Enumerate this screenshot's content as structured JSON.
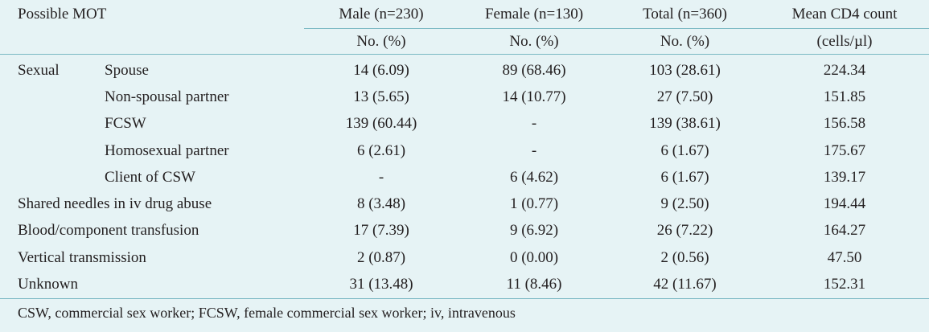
{
  "headers": {
    "mot": "Possible MOT",
    "male": "Male (n=230)",
    "female": "Female (n=130)",
    "total": "Total (n=360)",
    "cd4": "Mean CD4 count",
    "male_sub": "No. (%)",
    "female_sub": "No. (%)",
    "total_sub": "No. (%)",
    "cd4_sub": "(cells/µl)"
  },
  "rows": [
    {
      "category": "Sexual",
      "label": "Spouse",
      "male": "14 (6.09)",
      "female": "89 (68.46)",
      "total": "103 (28.61)",
      "cd4": "224.34"
    },
    {
      "category": "",
      "label": "Non-spousal partner",
      "male": "13 (5.65)",
      "female": "14 (10.77)",
      "total": "27 (7.50)",
      "cd4": "151.85"
    },
    {
      "category": "",
      "label": "FCSW",
      "male": "139 (60.44)",
      "female": "-",
      "total": "139 (38.61)",
      "cd4": "156.58"
    },
    {
      "category": "",
      "label": "Homosexual partner",
      "male": "6 (2.61)",
      "female": "-",
      "total": "6 (1.67)",
      "cd4": "175.67"
    },
    {
      "category": "",
      "label": "Client of CSW",
      "male": "-",
      "female": "6 (4.62)",
      "total": "6 (1.67)",
      "cd4": "139.17"
    },
    {
      "category": "",
      "label": "Shared needles in iv drug abuse",
      "male": "8 (3.48)",
      "female": "1 (0.77)",
      "total": "9 (2.50)",
      "cd4": "194.44"
    },
    {
      "category": "",
      "label": "Blood/component transfusion",
      "male": "17 (7.39)",
      "female": "9 (6.92)",
      "total": "26 (7.22)",
      "cd4": "164.27"
    },
    {
      "category": "",
      "label": "Vertical transmission",
      "male": "2 (0.87)",
      "female": "0 (0.00)",
      "total": "2 (0.56)",
      "cd4": "47.50"
    },
    {
      "category": "",
      "label": "Unknown",
      "male": "31 (13.48)",
      "female": "11 (8.46)",
      "total": "42 (11.67)",
      "cd4": "152.31"
    }
  ],
  "footnote": "CSW, commercial sex worker; FCSW, female commercial sex worker; iv, intravenous",
  "colors": {
    "background": "#e6f3f5",
    "rule": "#7ab8c3",
    "text": "#231f20"
  }
}
